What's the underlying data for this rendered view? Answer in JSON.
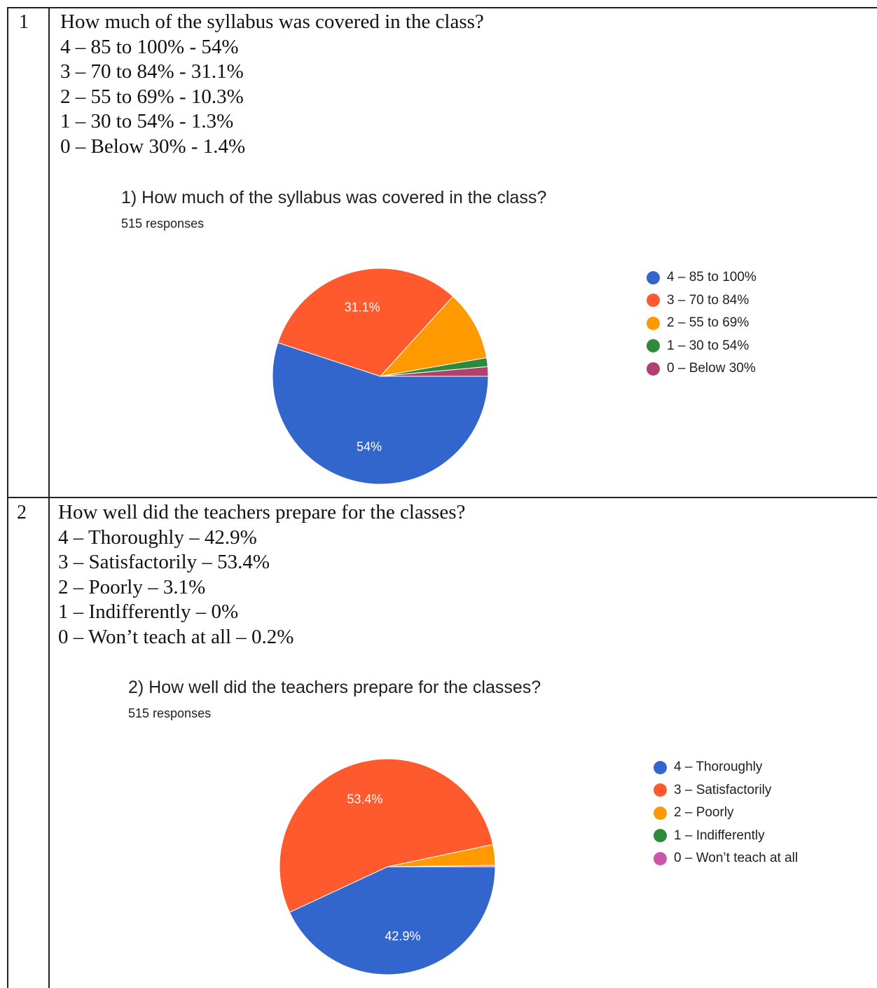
{
  "rows": [
    {
      "number": "1",
      "lines": [
        "How much of the syllabus was covered in the class?",
        "4 – 85 to 100% - 54%",
        "3 – 70 to 84% - 31.1%",
        "2 – 55 to 69% - 10.3%",
        "1 – 30 to 54% - 1.3%",
        "0 – Below 30% - 1.4%"
      ]
    },
    {
      "number": "2",
      "lines": [
        "How well did the teachers prepare for the classes?",
        "4 – Thoroughly – 42.9%",
        "3 – Satisfactorily – 53.4%",
        "2 – Poorly – 3.1%",
        "1 – Indifferently – 0%",
        "0 – Won’t teach at all – 0.2%"
      ]
    }
  ],
  "chart_data": [
    {
      "type": "pie",
      "title": "1) How much of the syllabus was covered in the class?",
      "subtitle": "515 responses",
      "categories": [
        "4 – 85 to 100%",
        "3 – 70 to 84%",
        "2 – 55 to 69%",
        "1 – 30 to 54%",
        "0 – Below 30%"
      ],
      "values": [
        54,
        31.1,
        10.3,
        1.3,
        1.4
      ],
      "data_labels": [
        "54%",
        "31.1%",
        "",
        "",
        ""
      ],
      "colors": [
        "#3366cc",
        "#ff5a2e",
        "#ff9900",
        "#2d8a3a",
        "#b0406f"
      ],
      "legend": "right"
    },
    {
      "type": "pie",
      "title": "2) How well did the teachers prepare for the classes?",
      "subtitle": "515 responses",
      "categories": [
        "4 – Thoroughly",
        "3 – Satisfactorily",
        "2 – Poorly",
        "1 – Indifferently",
        "0 – Won’t teach at all"
      ],
      "values": [
        42.9,
        53.4,
        3.1,
        0,
        0.2
      ],
      "data_labels": [
        "42.9%",
        "53.4%",
        "",
        "",
        ""
      ],
      "colors": [
        "#3366cc",
        "#ff5a2e",
        "#ff9900",
        "#2d8a3a",
        "#cc55aa"
      ],
      "legend": "right"
    }
  ]
}
